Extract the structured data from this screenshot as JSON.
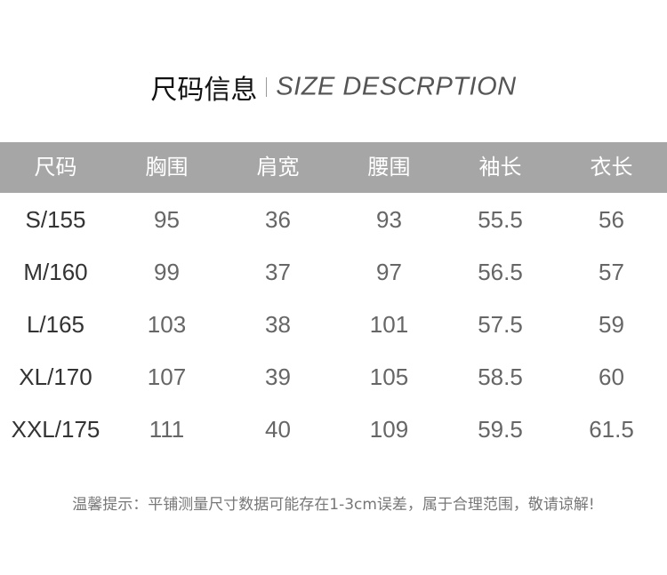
{
  "title": {
    "cn": "尺码信息",
    "en": "SIZE DESCRPTION"
  },
  "table": {
    "headers": [
      "尺码",
      "胸围",
      "肩宽",
      "腰围",
      "袖长",
      "衣长"
    ],
    "rows": [
      [
        "S/155",
        "95",
        "36",
        "93",
        "55.5",
        "56"
      ],
      [
        "M/160",
        "99",
        "37",
        "97",
        "56.5",
        "57"
      ],
      [
        "L/165",
        "103",
        "38",
        "101",
        "57.5",
        "59"
      ],
      [
        "XL/170",
        "107",
        "39",
        "105",
        "58.5",
        "60"
      ],
      [
        "XXL/175",
        "111",
        "40",
        "109",
        "59.5",
        "61.5"
      ]
    ]
  },
  "note": "温馨提示：平铺测量尺寸数据可能存在1-3cm误差，属于合理范围，敬请谅解!",
  "colors": {
    "header_bg": "#a6a6a6",
    "header_text": "#ffffff"
  }
}
